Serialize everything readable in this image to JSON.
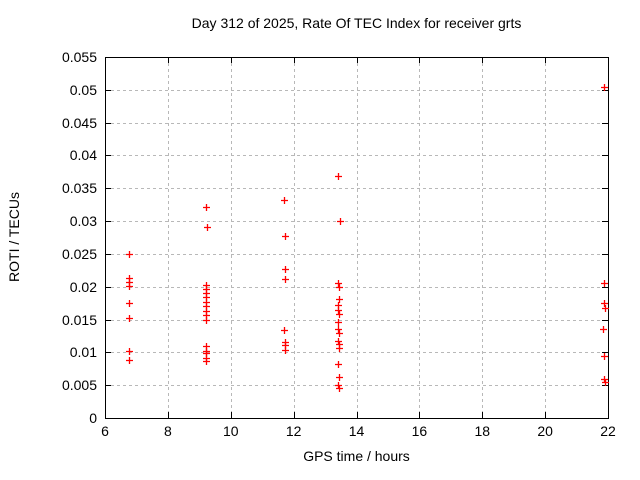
{
  "chart_data": {
    "type": "scatter",
    "title": "Day 312 of 2025, Rate Of TEC Index for receiver grts",
    "xlabel": "GPS time / hours",
    "ylabel": "ROTI / TECUs",
    "xlim": [
      6,
      22
    ],
    "ylim": [
      0,
      0.055
    ],
    "xticks": [
      6,
      8,
      10,
      12,
      14,
      16,
      18,
      20,
      22
    ],
    "xtick_labels": [
      "6",
      "8",
      "10",
      "12",
      "14",
      "16",
      "18",
      "20",
      "22"
    ],
    "yticks": [
      0,
      0.005,
      0.01,
      0.015,
      0.02,
      0.025,
      0.03,
      0.035,
      0.04,
      0.045,
      0.05,
      0.055
    ],
    "ytick_labels": [
      "0",
      "0.005",
      "0.01",
      "0.015",
      "0.02",
      "0.025",
      "0.03",
      "0.035",
      "0.04",
      "0.045",
      "0.05",
      "0.055"
    ],
    "grid": true,
    "legend_position": "none",
    "marker": "plus",
    "marker_color": "#ff0000",
    "grid_color": "#b8b8b8",
    "axis_color": "#000000",
    "background_color": "#ffffff",
    "series": [
      {
        "name": "ROTI",
        "points": [
          [
            6.76,
            0.025
          ],
          [
            6.76,
            0.0213
          ],
          [
            6.76,
            0.0207
          ],
          [
            6.76,
            0.0201
          ],
          [
            6.76,
            0.0175
          ],
          [
            6.76,
            0.0152
          ],
          [
            6.76,
            0.0102
          ],
          [
            6.76,
            0.0089
          ],
          [
            9.22,
            0.0321
          ],
          [
            9.24,
            0.0291
          ],
          [
            9.21,
            0.0202
          ],
          [
            9.22,
            0.0197
          ],
          [
            9.22,
            0.0191
          ],
          [
            9.21,
            0.0184
          ],
          [
            9.22,
            0.0177
          ],
          [
            9.22,
            0.017
          ],
          [
            9.21,
            0.0163
          ],
          [
            9.22,
            0.0157
          ],
          [
            9.22,
            0.015
          ],
          [
            9.22,
            0.0109
          ],
          [
            9.21,
            0.0102
          ],
          [
            9.22,
            0.0099
          ],
          [
            9.21,
            0.0091
          ],
          [
            9.22,
            0.0087
          ],
          [
            11.7,
            0.0332
          ],
          [
            11.72,
            0.0278
          ],
          [
            11.72,
            0.0227
          ],
          [
            11.72,
            0.0212
          ],
          [
            11.7,
            0.0134
          ],
          [
            11.72,
            0.0116
          ],
          [
            11.71,
            0.0111
          ],
          [
            11.72,
            0.0104
          ],
          [
            13.41,
            0.0369
          ],
          [
            13.47,
            0.03
          ],
          [
            13.42,
            0.0205
          ],
          [
            13.43,
            0.02
          ],
          [
            13.45,
            0.0182
          ],
          [
            13.42,
            0.0172
          ],
          [
            13.42,
            0.0165
          ],
          [
            13.45,
            0.0159
          ],
          [
            13.42,
            0.0146
          ],
          [
            13.4,
            0.0135
          ],
          [
            13.43,
            0.013
          ],
          [
            13.42,
            0.0118
          ],
          [
            13.43,
            0.0113
          ],
          [
            13.45,
            0.0106
          ],
          [
            13.42,
            0.0082
          ],
          [
            13.45,
            0.0063
          ],
          [
            13.42,
            0.0051
          ],
          [
            13.43,
            0.0046
          ],
          [
            21.88,
            0.0504
          ],
          [
            21.88,
            0.0206
          ],
          [
            21.88,
            0.0175
          ],
          [
            21.89,
            0.0167
          ],
          [
            21.85,
            0.0135
          ],
          [
            21.88,
            0.0094
          ],
          [
            21.88,
            0.006
          ],
          [
            21.89,
            0.0055
          ]
        ]
      }
    ]
  }
}
